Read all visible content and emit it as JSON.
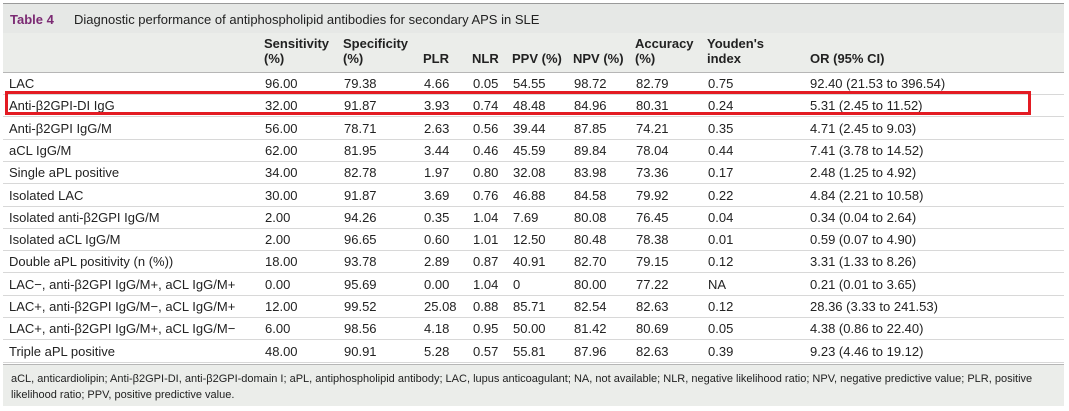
{
  "table": {
    "number": "Table 4",
    "caption": "Diagnostic performance of antiphospholipid antibodies for secondary APS in SLE",
    "headers": {
      "sensitivity": "Sensitivity\n(%)",
      "specificity": "Specificity\n(%)",
      "plr": "PLR",
      "nlr": "NLR",
      "ppv": "PPV (%)",
      "npv": "NPV (%)",
      "accuracy": "Accuracy\n(%)",
      "youden": "Youden's\nindex",
      "or": "OR (95% CI)"
    },
    "highlighted_row": "Anti-β2GPI-DI IgG",
    "rows": [
      {
        "label": "LAC",
        "sensitivity": "96.00",
        "specificity": "79.38",
        "plr": "4.66",
        "nlr": "0.05",
        "ppv": "54.55",
        "npv": "98.72",
        "accuracy": "82.79",
        "youden": "0.75",
        "or": "92.40 (21.53 to 396.54)"
      },
      {
        "label": "Anti-β2GPI-DI IgG",
        "sensitivity": "32.00",
        "specificity": "91.87",
        "plr": "3.93",
        "nlr": "0.74",
        "ppv": "48.48",
        "npv": "84.96",
        "accuracy": "80.31",
        "youden": "0.24",
        "or": "5.31 (2.45 to 11.52)"
      },
      {
        "label": "Anti-β2GPI IgG/M",
        "sensitivity": "56.00",
        "specificity": "78.71",
        "plr": "2.63",
        "nlr": "0.56",
        "ppv": "39.44",
        "npv": "87.85",
        "accuracy": "74.21",
        "youden": "0.35",
        "or": "4.71 (2.45 to 9.03)"
      },
      {
        "label": "aCL IgG/M",
        "sensitivity": "62.00",
        "specificity": "81.95",
        "plr": "3.44",
        "nlr": "0.46",
        "ppv": "45.59",
        "npv": "89.84",
        "accuracy": "78.04",
        "youden": "0.44",
        "or": "7.41 (3.78 to 14.52)"
      },
      {
        "label": "Single aPL positive",
        "sensitivity": "34.00",
        "specificity": "82.78",
        "plr": "1.97",
        "nlr": "0.80",
        "ppv": "32.08",
        "npv": "83.98",
        "accuracy": "73.36",
        "youden": "0.17",
        "or": "2.48 (1.25 to 4.92)"
      },
      {
        "label": "Isolated LAC",
        "sensitivity": "30.00",
        "specificity": "91.87",
        "plr": "3.69",
        "nlr": "0.76",
        "ppv": "46.88",
        "npv": "84.58",
        "accuracy": "79.92",
        "youden": "0.22",
        "or": "4.84 (2.21 to 10.58)"
      },
      {
        "label": "Isolated anti-β2GPI IgG/M",
        "sensitivity": "2.00",
        "specificity": "94.26",
        "plr": "0.35",
        "nlr": "1.04",
        "ppv": "7.69",
        "npv": "80.08",
        "accuracy": "76.45",
        "youden": "0.04",
        "or": "0.34 (0.04 to 2.64)"
      },
      {
        "label": "Isolated aCL IgG/M",
        "sensitivity": "2.00",
        "specificity": "96.65",
        "plr": "0.60",
        "nlr": "1.01",
        "ppv": "12.50",
        "npv": "80.48",
        "accuracy": "78.38",
        "youden": "0.01",
        "or": "0.59 (0.07 to 4.90)"
      },
      {
        "label": "Double aPL positivity (n (%))",
        "sensitivity": "18.00",
        "specificity": "93.78",
        "plr": "2.89",
        "nlr": "0.87",
        "ppv": "40.91",
        "npv": "82.70",
        "accuracy": "79.15",
        "youden": "0.12",
        "or": "3.31 (1.33 to 8.26)"
      },
      {
        "label": "LAC−, anti-β2GPI IgG/M+, aCL IgG/M+",
        "sensitivity": "0.00",
        "specificity": "95.69",
        "plr": "0.00",
        "nlr": "1.04",
        "ppv": "0",
        "npv": "80.00",
        "accuracy": "77.22",
        "youden": "NA",
        "or": "0.21 (0.01 to 3.65)"
      },
      {
        "label": "LAC+, anti-β2GPI IgG/M−, aCL IgG/M+",
        "sensitivity": "12.00",
        "specificity": "99.52",
        "plr": "25.08",
        "nlr": "0.88",
        "ppv": "85.71",
        "npv": "82.54",
        "accuracy": "82.63",
        "youden": "0.12",
        "or": "28.36 (3.33 to 241.53)"
      },
      {
        "label": "LAC+, anti-β2GPI IgG/M+, aCL IgG/M−",
        "sensitivity": "6.00",
        "specificity": "98.56",
        "plr": "4.18",
        "nlr": "0.95",
        "ppv": "50.00",
        "npv": "81.42",
        "accuracy": "80.69",
        "youden": "0.05",
        "or": "4.38 (0.86 to 22.40)"
      },
      {
        "label": "Triple aPL positive",
        "sensitivity": "48.00",
        "specificity": "90.91",
        "plr": "5.28",
        "nlr": "0.57",
        "ppv": "55.81",
        "npv": "87.96",
        "accuracy": "82.63",
        "youden": "0.39",
        "or": "9.23 (4.46 to 19.12)"
      }
    ],
    "footnote": "aCL, anticardiolipin; Anti-β2GPI-DI, anti-β2GPI-domain I; aPL, antiphospholipid antibody; LAC, lupus anticoagulant; NA, not available; NLR, negative likelihood ratio; NPV, negative predictive value; PLR, positive likelihood ratio; PPV, positive predictive value."
  },
  "colors": {
    "table_number": "#7b2a73",
    "highlight_border": "#e31b23",
    "header_bg": "#ebedea"
  }
}
